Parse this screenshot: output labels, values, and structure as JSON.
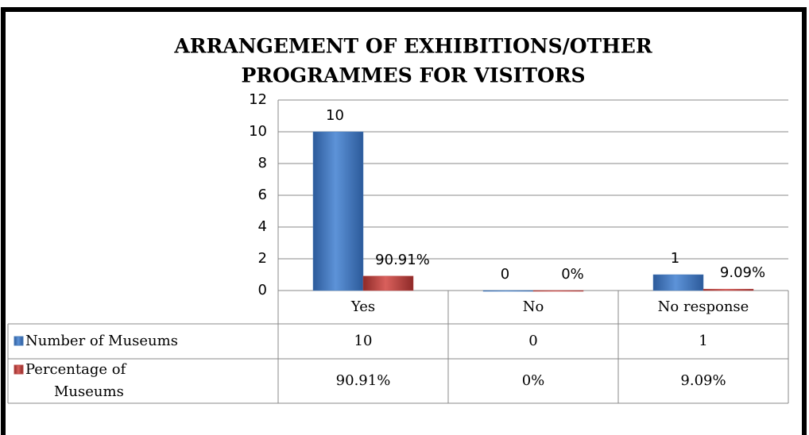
{
  "chart_data": {
    "type": "bar",
    "title": [
      "ARRANGEMENT OF EXHIBITIONS/OTHER",
      "PROGRAMMES FOR VISITORS"
    ],
    "categories": [
      "Yes",
      "No",
      "No response"
    ],
    "series": [
      {
        "name": "Number of Museums",
        "color": "#4a7ebb",
        "values": [
          10,
          0,
          1
        ]
      },
      {
        "name": [
          "Percentage of",
          "Museums"
        ],
        "color": "#be4b48",
        "values": [
          0.9091,
          0,
          0.0909
        ],
        "value_labels": [
          "90.91%",
          "0%",
          "9.09%"
        ]
      }
    ],
    "ylim": [
      0,
      12
    ],
    "yticks": [
      0,
      2,
      4,
      6,
      8,
      10,
      12
    ],
    "grid": true
  }
}
